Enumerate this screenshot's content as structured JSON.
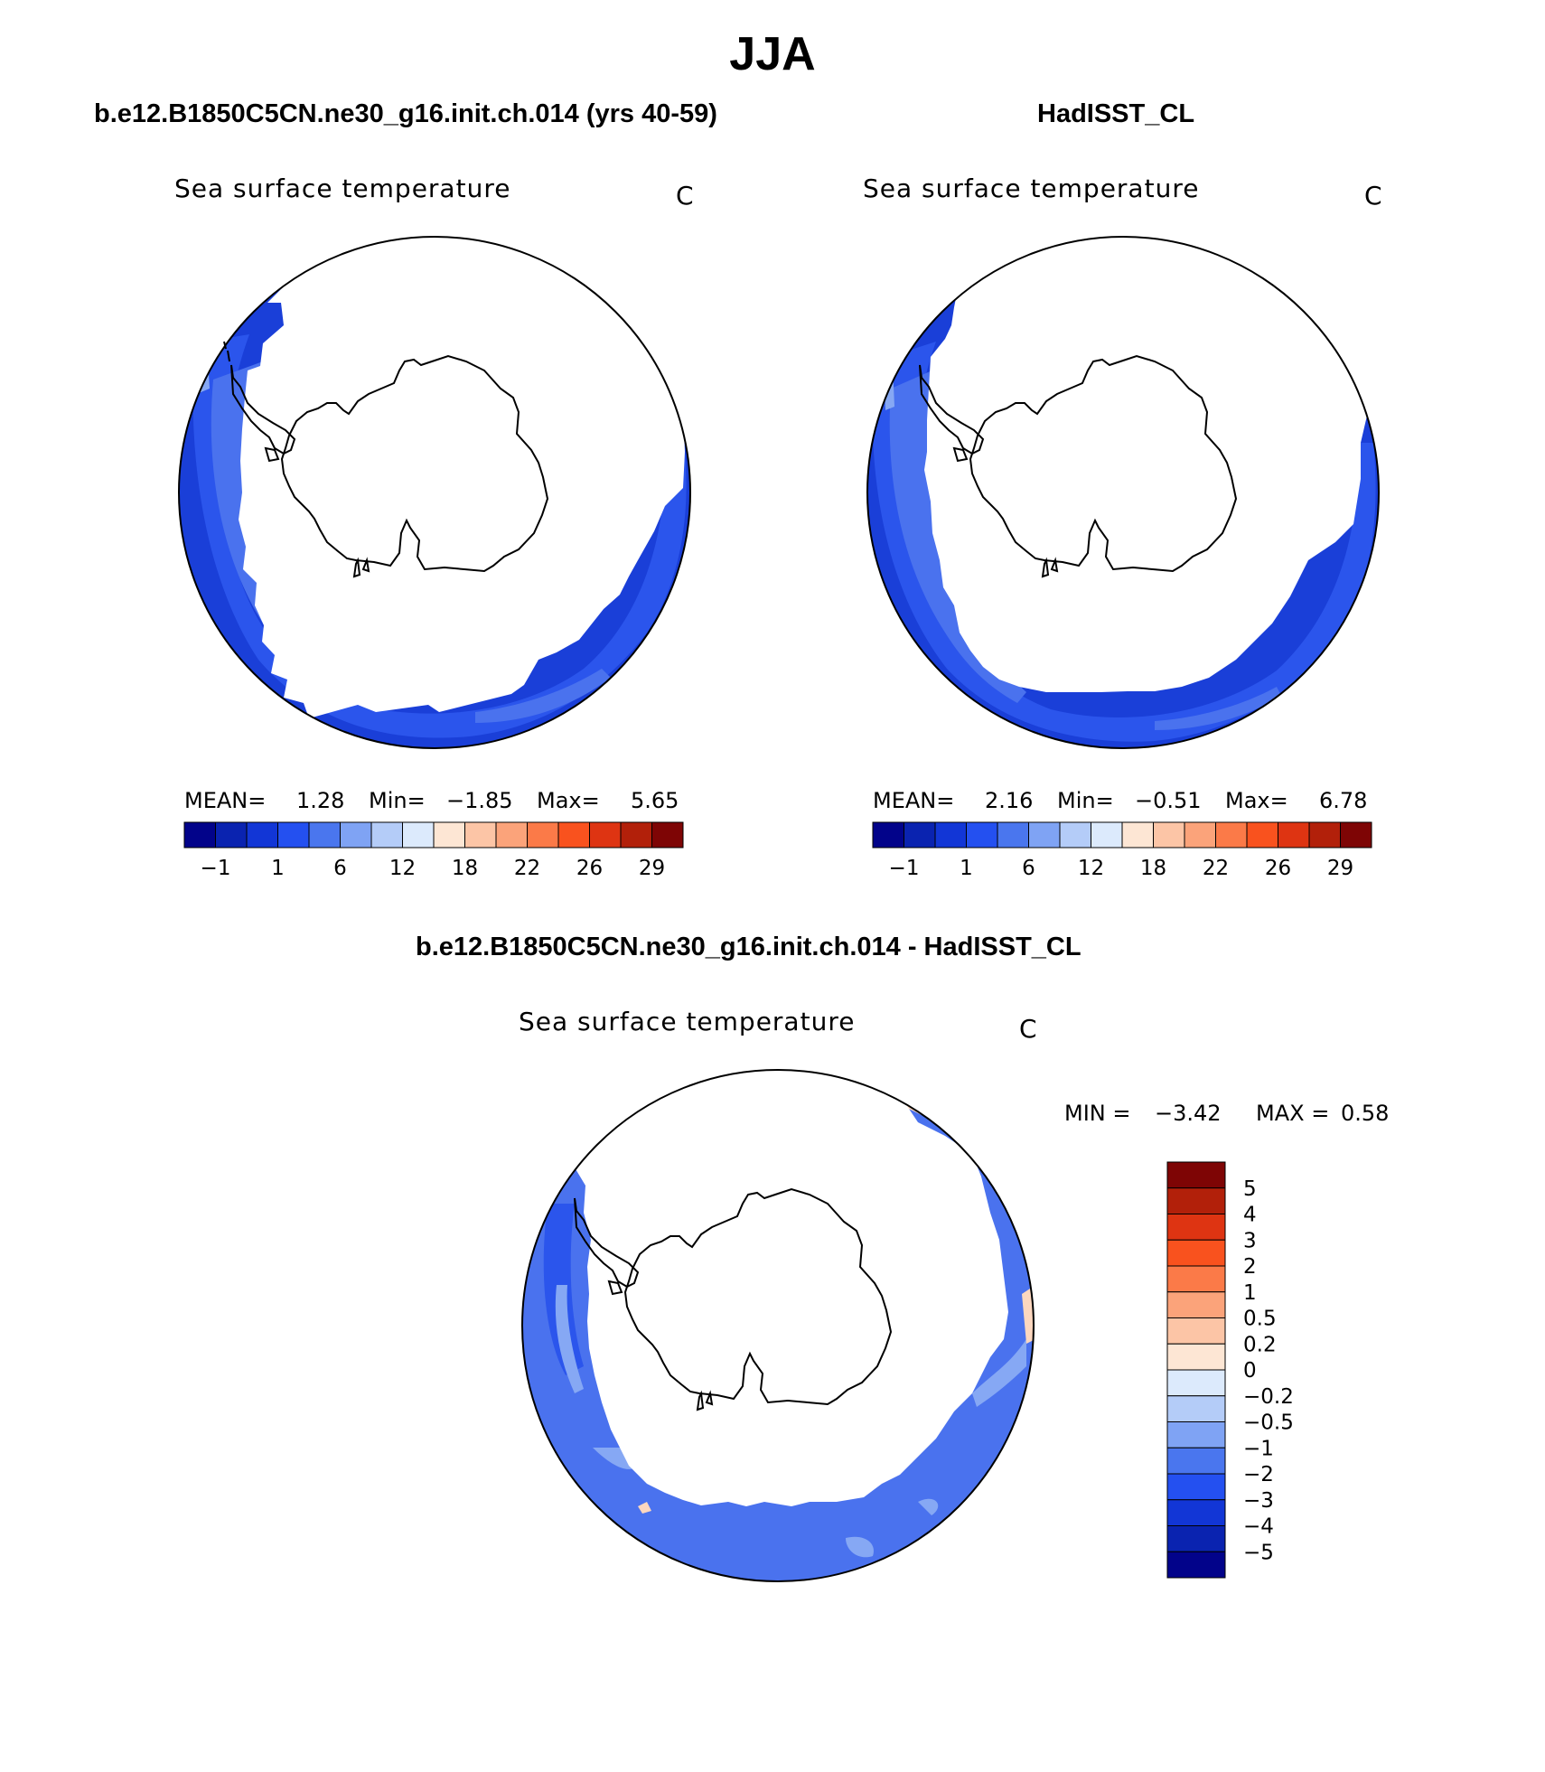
{
  "figure_title": "JJA",
  "season": "JJA",
  "panels": {
    "model": {
      "case_title": "b.e12.B1850C5CN.ne30_g16.init.ch.014 (yrs 40-59)",
      "variable": "Sea surface temperature",
      "units": "C",
      "mean_label": "MEAN=",
      "mean_value": "1.28",
      "min_label": "Min=",
      "min_value": "−1.85",
      "max_label": "Max=",
      "max_value": "5.65"
    },
    "obs": {
      "case_title": "HadISST_CL",
      "variable": "Sea surface temperature",
      "units": "C",
      "mean_label": "MEAN=",
      "mean_value": "2.16",
      "min_label": "Min=",
      "min_value": "−0.51",
      "max_label": "Max=",
      "max_value": "6.78"
    },
    "diff": {
      "case_title": "b.e12.B1850C5CN.ne30_g16.init.ch.014 - HadISST_CL",
      "variable": "Sea surface temperature",
      "units": "C",
      "min_label": "MIN =",
      "min_value": "−3.42",
      "max_label": "MAX =",
      "max_value": "0.58"
    }
  },
  "colorbars": {
    "absolute": {
      "colors": [
        "#02038a",
        "#0a23b0",
        "#1236d6",
        "#2450f0",
        "#4a76ee",
        "#7fa3f4",
        "#b4ccf8",
        "#dceafc",
        "#fde6d4",
        "#fcc5a6",
        "#fba37a",
        "#fb7a48",
        "#f9521e",
        "#de3412",
        "#b2200a",
        "#7e0505"
      ],
      "tick_labels": [
        "−1",
        "1",
        "6",
        "12",
        "18",
        "22",
        "26",
        "29"
      ]
    },
    "difference": {
      "colors": [
        "#02038a",
        "#0a23b0",
        "#1236d6",
        "#2450f0",
        "#4a76ee",
        "#7fa3f4",
        "#b4ccf8",
        "#dceafc",
        "#fde6d4",
        "#fcc5a6",
        "#fba37a",
        "#fb7a48",
        "#f9521e",
        "#de3412",
        "#b2200a",
        "#7e0505"
      ],
      "tick_labels": [
        "5",
        "4",
        "3",
        "2",
        "1",
        "0.5",
        "0.2",
        "0",
        "−0.2",
        "−0.5",
        "−1",
        "−2",
        "−3",
        "−4",
        "−5"
      ]
    }
  },
  "map_colors": {
    "ocean_dark": "#1a3fd8",
    "ocean_mid": "#2b55ec",
    "ocean_light": "#4a72ee",
    "ocean_pale": "#86a8f4",
    "warm_pale": "#fcd7bf",
    "land_coast": "#000000"
  }
}
